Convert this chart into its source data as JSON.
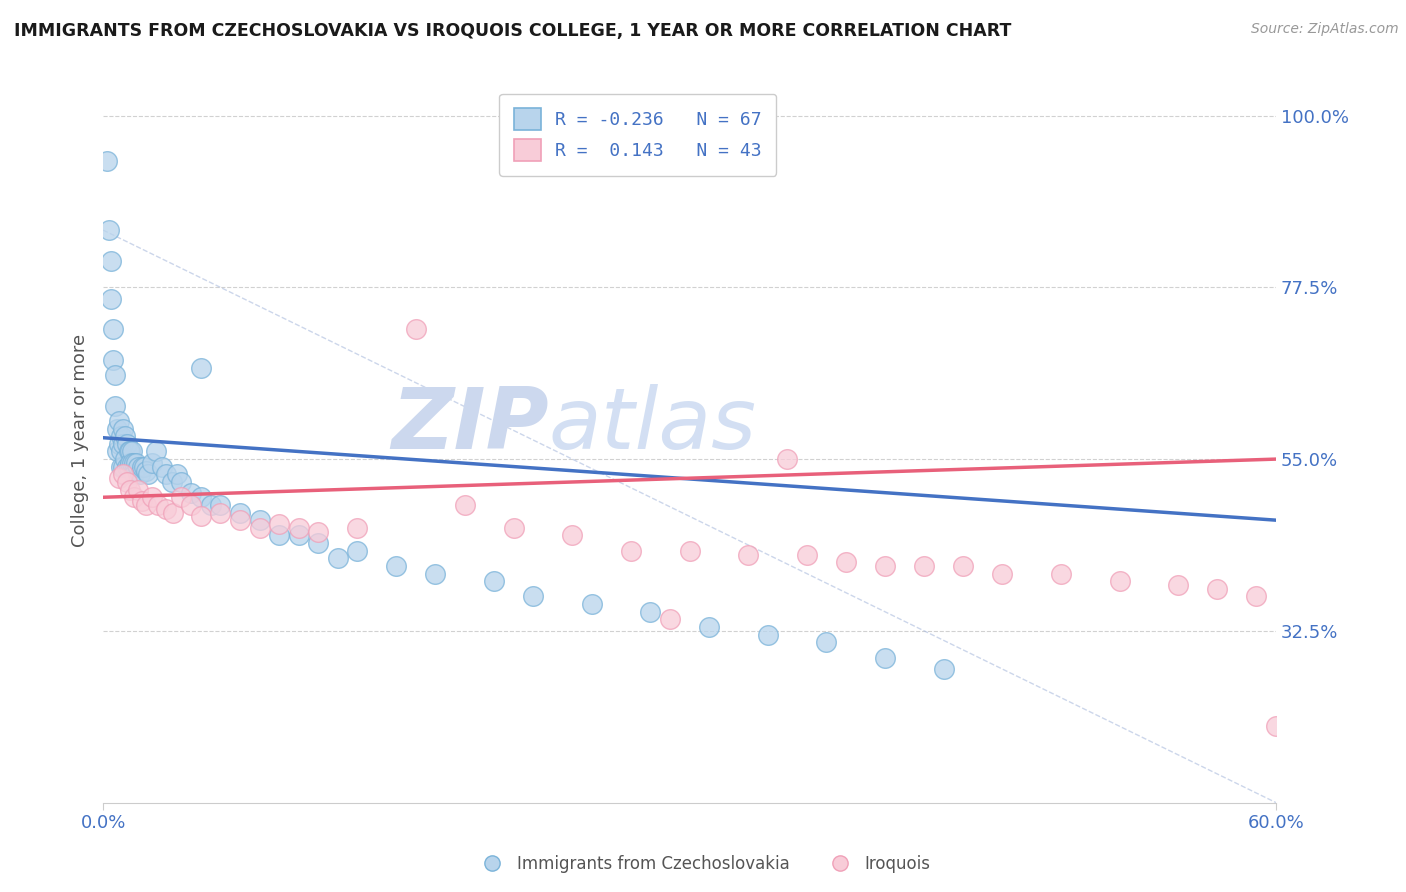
{
  "title": "IMMIGRANTS FROM CZECHOSLOVAKIA VS IROQUOIS COLLEGE, 1 YEAR OR MORE CORRELATION CHART",
  "source_text": "Source: ZipAtlas.com",
  "ylabel": "College, 1 year or more",
  "xlim": [
    0.0,
    0.6
  ],
  "ylim": [
    0.1,
    1.05
  ],
  "xticks": [
    0.0,
    0.6
  ],
  "xticklabels": [
    "0.0%",
    "60.0%"
  ],
  "ytick_positions": [
    0.325,
    0.55,
    0.775,
    1.0
  ],
  "ytick_labels": [
    "32.5%",
    "55.0%",
    "77.5%",
    "100.0%"
  ],
  "legend_R1": "-0.236",
  "legend_N1": "67",
  "legend_R2": " 0.143",
  "legend_N2": "43",
  "blue_color": "#7ab3d9",
  "blue_fill": "#b8d4ec",
  "pink_color": "#f0a0b8",
  "pink_fill": "#f8ccd8",
  "line_blue": "#4472c4",
  "line_pink": "#e8607a",
  "watermark_zip": "ZIP",
  "watermark_atlas": "atlas",
  "watermark_color": "#ccd8ee",
  "grid_color": "#cccccc",
  "title_color": "#1a1a1a",
  "label_color": "#4472c4",
  "axis_color": "#888888",
  "blue_scatter_x": [
    0.002,
    0.003,
    0.004,
    0.004,
    0.005,
    0.005,
    0.006,
    0.006,
    0.007,
    0.007,
    0.008,
    0.008,
    0.009,
    0.009,
    0.009,
    0.01,
    0.01,
    0.01,
    0.011,
    0.011,
    0.012,
    0.012,
    0.013,
    0.013,
    0.014,
    0.014,
    0.015,
    0.015,
    0.016,
    0.016,
    0.017,
    0.018,
    0.019,
    0.02,
    0.021,
    0.022,
    0.023,
    0.025,
    0.027,
    0.03,
    0.032,
    0.035,
    0.038,
    0.04,
    0.045,
    0.05,
    0.055,
    0.06,
    0.07,
    0.08,
    0.09,
    0.1,
    0.11,
    0.12,
    0.13,
    0.15,
    0.17,
    0.2,
    0.22,
    0.25,
    0.28,
    0.31,
    0.34,
    0.37,
    0.4,
    0.43,
    0.05
  ],
  "blue_scatter_y": [
    0.94,
    0.85,
    0.81,
    0.76,
    0.72,
    0.68,
    0.66,
    0.62,
    0.59,
    0.56,
    0.6,
    0.57,
    0.58,
    0.56,
    0.54,
    0.59,
    0.57,
    0.54,
    0.58,
    0.55,
    0.57,
    0.54,
    0.56,
    0.54,
    0.56,
    0.545,
    0.56,
    0.545,
    0.545,
    0.53,
    0.545,
    0.54,
    0.53,
    0.54,
    0.54,
    0.535,
    0.53,
    0.545,
    0.56,
    0.54,
    0.53,
    0.52,
    0.53,
    0.52,
    0.505,
    0.5,
    0.49,
    0.49,
    0.48,
    0.47,
    0.45,
    0.45,
    0.44,
    0.42,
    0.43,
    0.41,
    0.4,
    0.39,
    0.37,
    0.36,
    0.35,
    0.33,
    0.32,
    0.31,
    0.29,
    0.275,
    0.67
  ],
  "pink_scatter_x": [
    0.008,
    0.01,
    0.012,
    0.014,
    0.016,
    0.018,
    0.02,
    0.022,
    0.025,
    0.028,
    0.032,
    0.036,
    0.04,
    0.045,
    0.05,
    0.06,
    0.07,
    0.08,
    0.09,
    0.1,
    0.11,
    0.13,
    0.16,
    0.185,
    0.21,
    0.24,
    0.27,
    0.3,
    0.33,
    0.36,
    0.38,
    0.4,
    0.42,
    0.44,
    0.46,
    0.49,
    0.52,
    0.55,
    0.57,
    0.59,
    0.6,
    0.35,
    0.29
  ],
  "pink_scatter_y": [
    0.525,
    0.53,
    0.52,
    0.51,
    0.5,
    0.51,
    0.495,
    0.49,
    0.5,
    0.49,
    0.485,
    0.48,
    0.5,
    0.49,
    0.475,
    0.48,
    0.47,
    0.46,
    0.465,
    0.46,
    0.455,
    0.46,
    0.72,
    0.49,
    0.46,
    0.45,
    0.43,
    0.43,
    0.425,
    0.425,
    0.415,
    0.41,
    0.41,
    0.41,
    0.4,
    0.4,
    0.39,
    0.385,
    0.38,
    0.37,
    0.2,
    0.55,
    0.34
  ],
  "blue_line_x": [
    0.0,
    0.6
  ],
  "blue_line_y": [
    0.578,
    0.47
  ],
  "pink_line_x": [
    0.0,
    0.6
  ],
  "pink_line_y": [
    0.5,
    0.55
  ],
  "diag_line_x": [
    0.0,
    0.6
  ],
  "diag_line_y": [
    0.85,
    0.1
  ],
  "background_color": "#ffffff"
}
